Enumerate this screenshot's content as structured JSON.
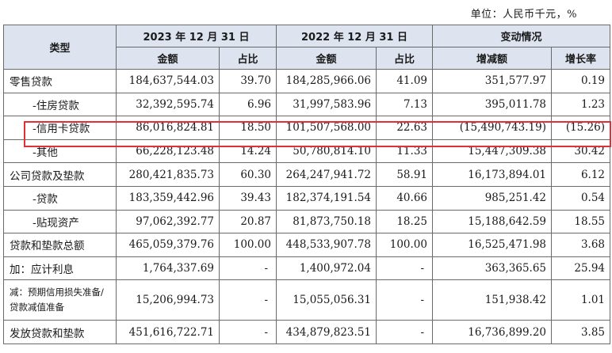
{
  "unit_note": "单位：人民币千元，%",
  "header": {
    "type_label": "类型",
    "group_2023": "2023 年 12 月 31 日",
    "group_2022": "2022 年 12 月 31 日",
    "group_change": "变动情况",
    "amount": "金额",
    "share": "占比",
    "change_amount": "增减额",
    "growth": "增长率"
  },
  "rows": [
    {
      "label": "零售贷款",
      "a23": "184,637,544.03",
      "s23": "39.70",
      "a22": "184,285,966.06",
      "s22": "41.09",
      "chg": "351,577.97",
      "gr": "0.19"
    },
    {
      "label": "-住房贷款",
      "a23": "32,392,595.74",
      "s23": "6.96",
      "a22": "31,997,583.96",
      "s22": "7.13",
      "chg": "395,011.78",
      "gr": "1.23"
    },
    {
      "label": "-信用卡贷款",
      "a23": "86,016,824.81",
      "s23": "18.50",
      "a22": "101,507,568.00",
      "s22": "22.63",
      "chg": "(15,490,743.19)",
      "gr": "(15.26)"
    },
    {
      "label": "-其他",
      "a23": "66,228,123.48",
      "s23": "14.24",
      "a22": "50,780,814.10",
      "s22": "11.33",
      "chg": "15,447,309.38",
      "gr": "30.42"
    },
    {
      "label": "公司贷款及垫款",
      "a23": "280,421,835.73",
      "s23": "60.30",
      "a22": "264,247,941.72",
      "s22": "58.91",
      "chg": "16,173,894.01",
      "gr": "6.12"
    },
    {
      "label": "-贷款",
      "a23": "183,359,442.96",
      "s23": "39.43",
      "a22": "182,374,191.54",
      "s22": "40.66",
      "chg": "985,251.42",
      "gr": "0.54"
    },
    {
      "label": "-贴现资产",
      "a23": "97,062,392.77",
      "s23": "20.87",
      "a22": "81,873,750.18",
      "s22": "18.25",
      "chg": "15,188,642.59",
      "gr": "18.55"
    },
    {
      "label": "贷款和垫款总额",
      "a23": "465,059,379.76",
      "s23": "100.00",
      "a22": "448,533,907.78",
      "s22": "100.00",
      "chg": "16,525,471.98",
      "gr": "3.68"
    },
    {
      "label": "加：应计利息",
      "a23": "1,764,337.69",
      "s23": "-",
      "a22": "1,400,972.04",
      "s22": "-",
      "chg": "363,365.65",
      "gr": "25.94"
    },
    {
      "label": "减：预期信用损失准备/贷款减值准备",
      "a23": "15,206,994.73",
      "s23": "-",
      "a22": "15,055,056.31",
      "s22": "-",
      "chg": "151,938.42",
      "gr": "1.01"
    },
    {
      "label": "发放贷款和垫款",
      "a23": "451,616,722.71",
      "s23": "-",
      "a22": "434,879,823.51",
      "s22": "-",
      "chg": "16,736,899.20",
      "gr": "3.85"
    }
  ]
}
